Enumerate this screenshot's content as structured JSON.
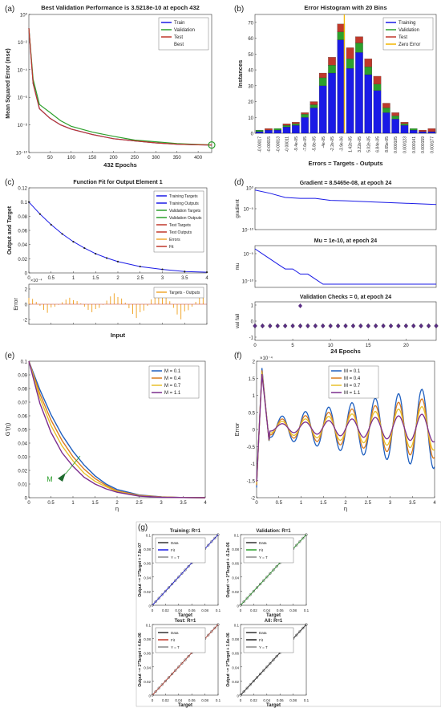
{
  "panel_labels": [
    "(a)",
    "(b)",
    "(c)",
    "(d)",
    "(e)",
    "(f)",
    "(g)"
  ],
  "colors": {
    "train": "#1a1ae6",
    "validation": "#2ca02c",
    "test": "#c0392b",
    "zero_error": "#f2b600",
    "m1": "#1f5fbf",
    "m2": "#d97a1e",
    "m3": "#e8c12a",
    "m4": "#7b2d8e",
    "error_bar": "#f0a830",
    "fit_target": "#1a1ae6"
  },
  "panels": {
    "a": {
      "title": "Best Validation Performance is 3.5218e-10 at epoch 432",
      "ylabel": "Mean Squared Error  (mse)",
      "xlabel": "432 Epochs",
      "xticks": [
        "0",
        "50",
        "100",
        "150",
        "200",
        "250",
        "300",
        "350",
        "400"
      ],
      "yticks": [
        "10⁰",
        "10⁻²",
        "10⁻⁴",
        "10⁻⁶",
        "10⁻⁸",
        "10⁻¹⁰"
      ],
      "legend": [
        "Train",
        "Validation",
        "Test",
        "Best"
      ]
    },
    "b": {
      "title": "Error Histogram with 20 Bins",
      "ylabel": "Instances",
      "xlabel": "Errors = Targets - Outputs",
      "yticks": [
        "0",
        "10",
        "20",
        "30",
        "40",
        "50",
        "60",
        "70"
      ],
      "bin_labels": [
        "-0.00017",
        "-0.00015",
        "-0.00013",
        "-0.00011",
        "-9.4e-05",
        "-7.6e-05",
        "-5.8e-05",
        "-4e-05",
        "-2.2e-05",
        "-3.9e-06",
        "1.42e-05",
        "3.22e-05",
        "5.02e-05",
        "6.84e-05",
        "8.65e-05",
        "0.000105",
        "0.000123",
        "0.000141",
        "0.000159",
        "0.000177"
      ],
      "legend": [
        "Training",
        "Validation",
        "Test",
        "Zero Error"
      ]
    },
    "c": {
      "title": "Function Fit for Output Element 1",
      "ylabel": "Output and Target",
      "xlabel": "Input",
      "error_ylabel": "Error",
      "xticks": [
        "0",
        "0.5",
        "1",
        "1.5",
        "2",
        "2.5",
        "3",
        "3.5",
        "4"
      ],
      "yticks": [
        "0",
        "0.02",
        "0.04",
        "0.06",
        "0.08",
        "0.1",
        "0.12"
      ],
      "error_scale": "×10⁻⁴",
      "error_yticks": [
        "2",
        "0",
        "-2"
      ],
      "legend": [
        "Training Targets",
        "Training Outputs",
        "Validation Targets",
        "Validation Outputs",
        "Test Targets",
        "Test Outputs",
        "Errors",
        "Fit"
      ],
      "error_legend": "Targets - Outputs"
    },
    "d": {
      "gradient_title": "Gradient = 8.5465e-08, at epoch 24",
      "gradient_ylabel": "gradient",
      "gradient_yticks": [
        "10⁰",
        "10⁻⁵",
        "10⁻¹⁰"
      ],
      "mu_title": "Mu = 1e-10, at epoch 24",
      "mu_ylabel": "mu",
      "mu_yticks": [
        "10⁻⁵",
        "10⁻¹⁰"
      ],
      "val_title": "Validation Checks = 0, at epoch 24",
      "val_ylabel": "val fail",
      "val_yticks": [
        "1",
        "0",
        "-1"
      ],
      "xlabel": "24 Epochs",
      "xticks": [
        "0",
        "5",
        "10",
        "15",
        "20"
      ]
    },
    "e": {
      "ylabel": "G′(η)",
      "xlabel": "η",
      "annotation": "M",
      "xticks": [
        "0",
        "0.5",
        "1",
        "1.5",
        "2",
        "2.5",
        "3",
        "3.5",
        "4"
      ],
      "yticks": [
        "0",
        "0.01",
        "0.02",
        "0.03",
        "0.04",
        "0.05",
        "0.06",
        "0.07",
        "0.08",
        "0.09",
        "0.1"
      ],
      "legend": [
        "M = 0.1",
        "M = 0.4",
        "M = 0.7",
        "M = 1.1"
      ]
    },
    "f": {
      "ylabel": "Error",
      "xlabel": "η",
      "scale": "×10⁻⁴",
      "xticks": [
        "0",
        "0.5",
        "1",
        "1.5",
        "2",
        "2.5",
        "3",
        "3.5",
        "4"
      ],
      "yticks": [
        "-2",
        "-1.5",
        "-1",
        "-0.5",
        "0",
        "0.5",
        "1",
        "1.5",
        "2"
      ],
      "legend": [
        "M = 0.1",
        "M = 0.4",
        "M = 0.7",
        "M = 1.1"
      ]
    },
    "g": {
      "subplots": [
        {
          "title": "Training: R=1",
          "ylabel": "Output ~= 1*Target + 7.8e-07",
          "fit_color": "#1a1ae6",
          "legend": [
            "Data",
            "Fit",
            "Y = T"
          ]
        },
        {
          "title": "Validation: R=1",
          "ylabel": "Output ~= 1*Target + -5.2e-06",
          "fit_color": "#2ca02c",
          "legend": [
            "Data",
            "Fit",
            "Y = T"
          ]
        },
        {
          "title": "Test: R=1",
          "ylabel": "Output ~= 1*Target + 4.6e-06",
          "fit_color": "#c0392b",
          "legend": [
            "Data",
            "Fit",
            "Y = T"
          ]
        },
        {
          "title": "All: R=1",
          "ylabel": "Output ~= 1*Target + 1.6e-06",
          "fit_color": "#222222",
          "legend": [
            "Data",
            "Fit",
            "Y = T"
          ]
        }
      ],
      "xlabel": "Target",
      "xticks": [
        "0",
        "0.02",
        "0.04",
        "0.06",
        "0.08",
        "0.1"
      ],
      "yticks": [
        "0",
        "0.02",
        "0.04",
        "0.06",
        "0.08",
        "0.1"
      ]
    }
  },
  "chart_data": [
    {
      "type": "line",
      "id": "a",
      "yscale": "log",
      "xlim": [
        0,
        432
      ],
      "ylim": [
        1e-10,
        1
      ],
      "series": [
        {
          "name": "Train",
          "x": [
            0,
            10,
            25,
            50,
            75,
            100,
            150,
            200,
            250,
            300,
            350,
            400,
            432
          ],
          "y": [
            0.1,
            1e-05,
            1.5e-07,
            3e-08,
            1e-08,
            5e-09,
            2e-09,
            1e-09,
            7e-10,
            5e-10,
            4e-10,
            3.6e-10,
            3.5e-10
          ]
        },
        {
          "name": "Validation",
          "x": [
            0,
            10,
            25,
            50,
            75,
            100,
            150,
            200,
            250,
            300,
            350,
            400,
            432
          ],
          "y": [
            0.1,
            2e-05,
            3e-07,
            8e-08,
            2e-08,
            8e-09,
            3e-09,
            1.5e-09,
            8e-10,
            6e-10,
            4.5e-10,
            3.8e-10,
            3.5218e-10
          ]
        },
        {
          "name": "Test",
          "x": [
            0,
            10,
            25,
            50,
            75,
            100,
            150,
            200,
            250,
            300,
            350,
            400,
            432
          ],
          "y": [
            0.1,
            1e-05,
            1.5e-07,
            3e-08,
            1e-08,
            5e-09,
            2e-09,
            1e-09,
            7e-10,
            5e-10,
            4e-10,
            3.6e-10,
            3.5e-10
          ]
        }
      ],
      "best": {
        "epoch": 432,
        "value": 3.5218e-10
      }
    },
    {
      "type": "bar",
      "id": "b",
      "stacked": true,
      "ylim": [
        0,
        75
      ],
      "categories": [
        "-0.00017",
        "-0.00015",
        "-0.00013",
        "-0.00011",
        "-9.4e-05",
        "-7.6e-05",
        "-5.8e-05",
        "-4e-05",
        "-2.2e-05",
        "-3.9e-06",
        "1.42e-05",
        "3.22e-05",
        "5.02e-05",
        "6.84e-05",
        "8.65e-05",
        "0.000105",
        "0.000123",
        "0.000141",
        "0.000159",
        "0.000177"
      ],
      "series": [
        {
          "name": "Training",
          "values": [
            1,
            2,
            2,
            4,
            5,
            10,
            16,
            30,
            38,
            59,
            41,
            51,
            37,
            27,
            13,
            9,
            5,
            2,
            1,
            1
          ]
        },
        {
          "name": "Validation",
          "values": [
            1,
            0,
            1,
            1,
            1,
            2,
            2,
            5,
            5,
            5,
            6,
            6,
            5,
            4,
            3,
            2,
            1,
            1,
            0,
            0
          ]
        },
        {
          "name": "Test",
          "values": [
            0,
            1,
            0,
            1,
            1,
            1,
            2,
            3,
            5,
            5,
            7,
            4,
            5,
            5,
            3,
            2,
            1,
            0,
            1,
            2
          ]
        }
      ],
      "zero_error_x": "-3.9e-06"
    },
    {
      "type": "line",
      "id": "c",
      "xlim": [
        0,
        4
      ],
      "ylim": [
        0,
        0.12
      ],
      "x": [
        0,
        0.25,
        0.5,
        0.75,
        1,
        1.25,
        1.5,
        1.75,
        2,
        2.5,
        3,
        3.5,
        4
      ],
      "series": [
        {
          "name": "Fit",
          "values": [
            0.1,
            0.083,
            0.068,
            0.055,
            0.044,
            0.035,
            0.027,
            0.021,
            0.016,
            0.009,
            0.005,
            0.002,
            0.001
          ]
        }
      ],
      "error_series": {
        "name": "Targets - Outputs",
        "x": [
          0,
          0.5,
          1,
          1.5,
          2,
          2.5,
          3,
          3.5,
          4
        ],
        "values": [
          0.8,
          -0.4,
          0.5,
          -0.6,
          0.9,
          -1.0,
          1.2,
          -0.9,
          0.6
        ],
        "scale": 0.0001
      }
    },
    {
      "type": "line",
      "id": "d",
      "xlim": [
        0,
        24
      ],
      "gradient": {
        "yscale": "log",
        "x": [
          0,
          2,
          4,
          6,
          8,
          10,
          12,
          16,
          20,
          24
        ],
        "y": [
          0.3,
          0.05,
          0.005,
          0.003,
          0.003,
          0.001,
          0.0008,
          0.0004,
          0.0002,
          8.5465e-08
        ]
      },
      "mu": {
        "yscale": "log",
        "x": [
          0,
          1,
          2,
          3,
          4,
          5,
          6,
          7,
          8,
          9,
          24
        ],
        "y": [
          0.001,
          0.0001,
          1e-05,
          1e-06,
          1e-07,
          1e-07,
          1e-08,
          1e-08,
          1e-09,
          1e-10,
          1e-10
        ]
      },
      "val_fail": {
        "x": [
          0,
          1,
          2,
          3,
          4,
          5,
          6,
          7,
          8,
          9,
          10,
          11,
          12,
          13,
          14,
          15,
          16,
          17,
          18,
          19,
          20,
          21,
          22,
          23,
          24
        ],
        "y": [
          0,
          0,
          0,
          0,
          0,
          0,
          0,
          0,
          0,
          0,
          0,
          0,
          0,
          0,
          0,
          0,
          0,
          0,
          0,
          0,
          0,
          0,
          0,
          0,
          0
        ],
        "best_epoch": 6
      }
    },
    {
      "type": "line",
      "id": "e",
      "xlim": [
        0,
        4
      ],
      "ylim": [
        0,
        0.1
      ],
      "x": [
        0,
        0.25,
        0.5,
        0.75,
        1,
        1.25,
        1.5,
        1.75,
        2,
        2.5,
        3,
        3.5,
        4
      ],
      "series": [
        {
          "name": "M = 0.1",
          "values": [
            0.1,
            0.079,
            0.061,
            0.046,
            0.034,
            0.024,
            0.016,
            0.01,
            0.006,
            0.002,
            0.0006,
            0.0001,
            0
          ]
        },
        {
          "name": "M = 0.4",
          "values": [
            0.1,
            0.076,
            0.057,
            0.042,
            0.03,
            0.021,
            0.014,
            0.009,
            0.005,
            0.0017,
            0.0005,
            0.0001,
            0
          ]
        },
        {
          "name": "M = 0.7",
          "values": [
            0.1,
            0.073,
            0.053,
            0.038,
            0.027,
            0.018,
            0.012,
            0.008,
            0.0045,
            0.0015,
            0.0004,
            0.0001,
            0
          ]
        },
        {
          "name": "M = 1.1",
          "values": [
            0.1,
            0.069,
            0.048,
            0.033,
            0.023,
            0.015,
            0.01,
            0.0065,
            0.004,
            0.0012,
            0.0003,
            0.0001,
            0
          ]
        }
      ]
    },
    {
      "type": "line",
      "id": "f",
      "xlim": [
        0,
        4
      ],
      "ylim": [
        -2,
        2
      ],
      "y_multiplier": 0.0001,
      "series": [
        {
          "name": "M = 0.1",
          "amplitude": 1.0
        },
        {
          "name": "M = 0.4",
          "amplitude": 0.75
        },
        {
          "name": "M = 0.7",
          "amplitude": 0.55
        },
        {
          "name": "M = 1.1",
          "amplitude": 0.35
        }
      ]
    },
    {
      "type": "scatter",
      "id": "g",
      "xlim": [
        0,
        0.1
      ],
      "ylim": [
        0,
        0.1
      ],
      "subplots": [
        {
          "name": "Training",
          "R": 1,
          "slope": 1,
          "intercept": 7.8e-07
        },
        {
          "name": "Validation",
          "R": 1,
          "slope": 1,
          "intercept": -5.2e-06
        },
        {
          "name": "Test",
          "R": 1,
          "slope": 1,
          "intercept": 4.6e-06
        },
        {
          "name": "All",
          "R": 1,
          "slope": 1,
          "intercept": 1.6e-06
        }
      ]
    }
  ]
}
